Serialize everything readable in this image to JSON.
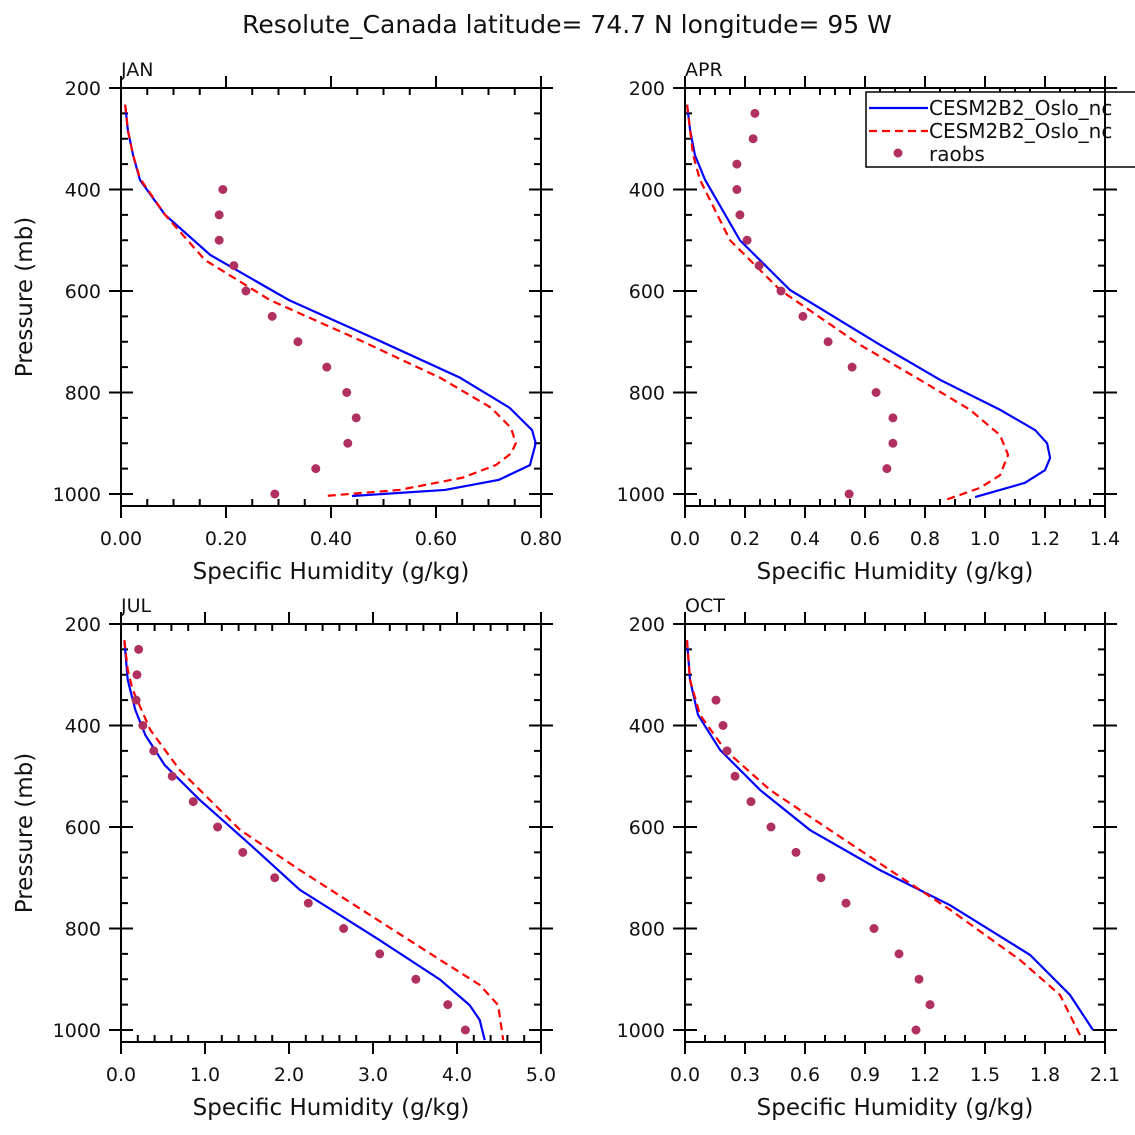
{
  "title": "Resolute_Canada   latitude= 74.7 N longitude= 95 W",
  "legend": {
    "entries": [
      {
        "label": "CESM2B2_Oslo_nc",
        "style": "solid",
        "color": "#0000ff"
      },
      {
        "label": "CESM2B2_Oslo_nc",
        "style": "dashed",
        "color": "#ff0000"
      },
      {
        "label": "raobs",
        "style": "dot",
        "color": "#b03060"
      }
    ]
  },
  "colors": {
    "model1": "#0000ff",
    "model2": "#ff0000",
    "raobs": "#b03060",
    "axis": "#000000"
  },
  "chart_data": [
    {
      "type": "line",
      "panel": "JAN",
      "xlabel": "Specific Humidity (g/kg)",
      "ylabel": "Pressure (mb)",
      "xlim": [
        0,
        0.8
      ],
      "ylim": [
        1025,
        200
      ],
      "xmajor": 0.2,
      "xminor": 0.05,
      "xticks": [
        "0.00",
        "0.20",
        "0.40",
        "0.60",
        "0.80"
      ],
      "yticks": [
        "200",
        "400",
        "600",
        "800",
        "1000"
      ],
      "series": [
        {
          "name": "CESM2B2_Oslo_nc (solid)",
          "x": [
            0.008,
            0.013,
            0.023,
            0.036,
            0.084,
            0.17,
            0.32,
            0.49,
            0.646,
            0.74,
            0.783,
            0.79,
            0.779,
            0.72,
            0.617,
            0.44
          ],
          "y": [
            233,
            283,
            332,
            381,
            450,
            529,
            618,
            697,
            771,
            830,
            874,
            900,
            943,
            972,
            992,
            1004
          ]
        },
        {
          "name": "CESM2B2_Oslo_nc (dashed)",
          "x": [
            0.008,
            0.013,
            0.023,
            0.036,
            0.084,
            0.16,
            0.284,
            0.455,
            0.608,
            0.705,
            0.743,
            0.752,
            0.743,
            0.714,
            0.65,
            0.53,
            0.387
          ],
          "y": [
            233,
            283,
            332,
            378,
            450,
            539,
            618,
            697,
            771,
            830,
            870,
            900,
            920,
            943,
            968,
            992,
            1004
          ]
        },
        {
          "name": "raobs",
          "x": [
            0.194,
            0.187,
            0.187,
            0.215,
            0.238,
            0.288,
            0.337,
            0.392,
            0.43,
            0.448,
            0.432,
            0.371,
            0.293
          ],
          "y": [
            400,
            450,
            500,
            550,
            600,
            650,
            700,
            750,
            800,
            850,
            900,
            950,
            1000
          ]
        }
      ]
    },
    {
      "type": "line",
      "panel": "APR",
      "xlabel": "Specific Humidity (g/kg)",
      "ylabel": "",
      "xlim": [
        0,
        1.4
      ],
      "ylim": [
        1025,
        200
      ],
      "xmajor": 0.2,
      "xminor": 0.05,
      "xticks": [
        "0.0",
        "0.2",
        "0.4",
        "0.6",
        "0.8",
        "1.0",
        "1.2",
        "1.4"
      ],
      "yticks": [
        "200",
        "400",
        "600",
        "800",
        "1000"
      ],
      "series": [
        {
          "name": "CESM2B2_Oslo_nc (solid)",
          "x": [
            0.007,
            0.017,
            0.033,
            0.067,
            0.183,
            0.35,
            0.65,
            0.85,
            1.05,
            1.167,
            1.207,
            1.217,
            1.2,
            1.133,
            0.967
          ],
          "y": [
            233,
            283,
            332,
            381,
            500,
            598,
            706,
            775,
            834,
            874,
            900,
            929,
            953,
            978,
            1006
          ]
        },
        {
          "name": "CESM2B2_Oslo_nc (dashed)",
          "x": [
            0.007,
            0.017,
            0.027,
            0.05,
            0.15,
            0.317,
            0.583,
            0.783,
            0.95,
            1.05,
            1.077,
            1.05,
            0.983,
            0.867
          ],
          "y": [
            233,
            283,
            332,
            381,
            500,
            598,
            706,
            775,
            834,
            884,
            923,
            963,
            988,
            1012
          ]
        },
        {
          "name": "raobs",
          "x": [
            0.233,
            0.227,
            0.173,
            0.173,
            0.183,
            0.207,
            0.247,
            0.32,
            0.393,
            0.477,
            0.557,
            0.637,
            0.693,
            0.693,
            0.673,
            0.547
          ],
          "y": [
            250,
            300,
            350,
            400,
            450,
            500,
            550,
            600,
            650,
            700,
            750,
            800,
            850,
            900,
            950,
            1000
          ]
        }
      ]
    },
    {
      "type": "line",
      "panel": "JUL",
      "xlabel": "Specific Humidity (g/kg)",
      "ylabel": "Pressure (mb)",
      "xlim": [
        0,
        5.0
      ],
      "ylim": [
        1025,
        200
      ],
      "xmajor": 1.0,
      "xminor": 0.2,
      "xticks": [
        "0.0",
        "1.0",
        "2.0",
        "3.0",
        "4.0",
        "5.0"
      ],
      "yticks": [
        "200",
        "400",
        "600",
        "800",
        "1000"
      ],
      "series": [
        {
          "name": "CESM2B2_Oslo_nc (solid)",
          "x": [
            0.04,
            0.08,
            0.17,
            0.29,
            0.52,
            0.94,
            1.54,
            2.13,
            3.08,
            3.8,
            4.15,
            4.27,
            4.33
          ],
          "y": [
            232,
            310,
            369,
            419,
            478,
            547,
            635,
            724,
            823,
            901,
            951,
            980,
            1020
          ]
        },
        {
          "name": "CESM2B2_Oslo_nc (dashed)",
          "x": [
            0.04,
            0.08,
            0.14,
            0.35,
            0.7,
            1.42,
            2.13,
            2.96,
            3.8,
            4.27,
            4.49,
            4.55
          ],
          "y": [
            232,
            290,
            330,
            409,
            488,
            606,
            685,
            773,
            862,
            911,
            951,
            1020
          ]
        },
        {
          "name": "raobs",
          "x": [
            0.21,
            0.19,
            0.18,
            0.26,
            0.39,
            0.61,
            0.86,
            1.15,
            1.45,
            1.83,
            2.23,
            2.65,
            3.08,
            3.51,
            3.89,
            4.1
          ],
          "y": [
            250,
            300,
            350,
            400,
            450,
            500,
            550,
            600,
            650,
            700,
            750,
            800,
            850,
            900,
            950,
            1000
          ]
        }
      ]
    },
    {
      "type": "line",
      "panel": "OCT",
      "xlabel": "Specific Humidity (g/kg)",
      "ylabel": "",
      "xlim": [
        0,
        2.1
      ],
      "ylim": [
        1025,
        200
      ],
      "xmajor": 0.3,
      "xminor": 0.1,
      "xticks": [
        "0.0",
        "0.3",
        "0.6",
        "0.9",
        "1.2",
        "1.5",
        "1.8",
        "2.1"
      ],
      "yticks": [
        "200",
        "400",
        "600",
        "800",
        "1000"
      ],
      "series": [
        {
          "name": "CESM2B2_Oslo_nc (solid)",
          "x": [
            0.01,
            0.025,
            0.065,
            0.175,
            0.375,
            0.625,
            0.975,
            1.325,
            1.725,
            1.925,
            2.04
          ],
          "y": [
            232,
            310,
            379,
            448,
            527,
            606,
            685,
            754,
            852,
            931,
            1000
          ]
        },
        {
          "name": "CESM2B2_Oslo_nc (dashed)",
          "x": [
            0.01,
            0.025,
            0.075,
            0.2,
            0.425,
            0.725,
            1.025,
            1.325,
            1.675,
            1.875,
            1.975
          ],
          "y": [
            232,
            310,
            379,
            448,
            527,
            606,
            685,
            763,
            862,
            931,
            1010
          ]
        },
        {
          "name": "raobs",
          "x": [
            0.155,
            0.19,
            0.21,
            0.25,
            0.33,
            0.43,
            0.555,
            0.68,
            0.805,
            0.945,
            1.07,
            1.17,
            1.225,
            1.155
          ],
          "y": [
            350,
            400,
            450,
            500,
            550,
            600,
            650,
            700,
            750,
            800,
            850,
            900,
            950,
            1000
          ]
        }
      ]
    }
  ]
}
